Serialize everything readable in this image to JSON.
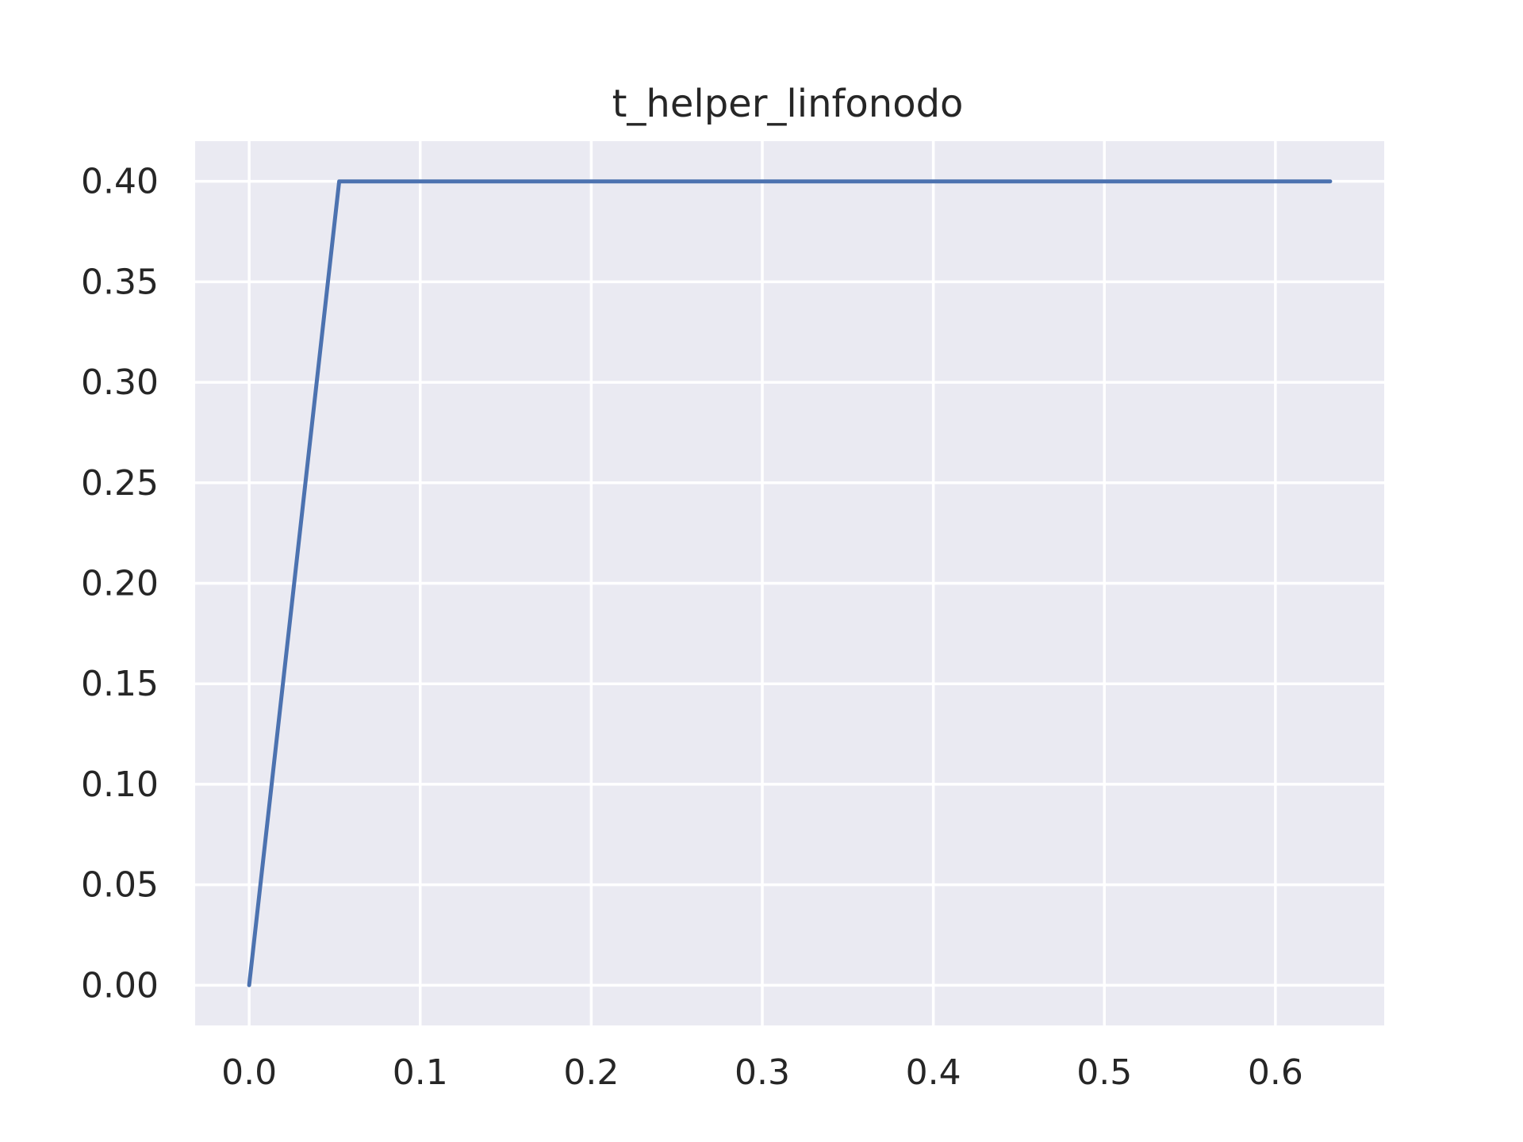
{
  "chart_data": {
    "type": "line",
    "title": "t_helper_linfonodo",
    "xlabel": "",
    "ylabel": "",
    "xlim": [
      -0.0316,
      0.6636
    ],
    "ylim": [
      -0.02,
      0.42
    ],
    "x_ticks": [
      0.0,
      0.1,
      0.2,
      0.3,
      0.4,
      0.5,
      0.6
    ],
    "x_tick_labels": [
      "0.0",
      "0.1",
      "0.2",
      "0.3",
      "0.4",
      "0.5",
      "0.6"
    ],
    "y_ticks": [
      0.0,
      0.05,
      0.1,
      0.15,
      0.2,
      0.25,
      0.3,
      0.35,
      0.4
    ],
    "y_tick_labels": [
      "0.00",
      "0.05",
      "0.10",
      "0.15",
      "0.20",
      "0.25",
      "0.30",
      "0.35",
      "0.40"
    ],
    "grid": true,
    "colors": {
      "background": "#eaeaf2",
      "grid": "#ffffff",
      "line": "#4c72b0",
      "text": "#262626"
    },
    "series": [
      {
        "x": [
          0.0,
          0.0526,
          0.632
        ],
        "y": [
          0.0,
          0.4,
          0.4
        ]
      }
    ]
  }
}
